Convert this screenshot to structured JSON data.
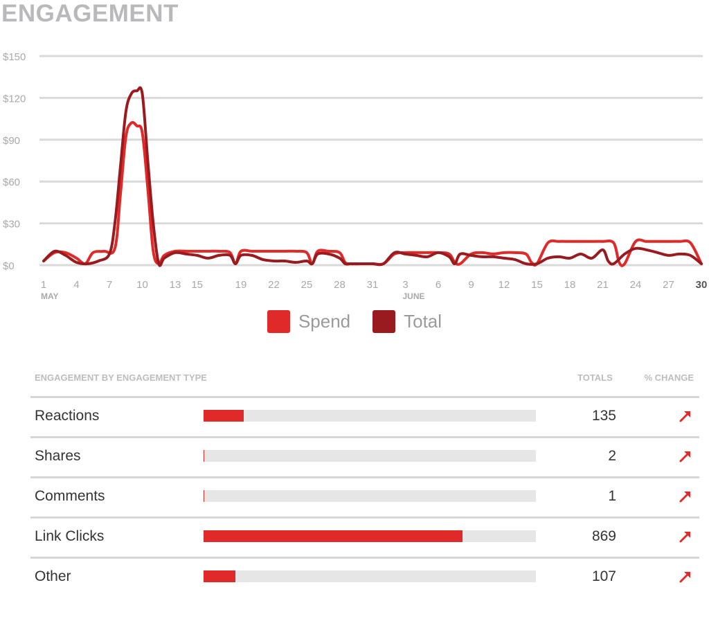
{
  "title": "ENGAGEMENT",
  "colors": {
    "spend": "#e02a2a",
    "total": "#9a1b1f",
    "grid": "#d9d9d9",
    "bar_bg": "#e6e6e6"
  },
  "chart_data": {
    "type": "line",
    "ylim": [
      0,
      150
    ],
    "yticks": [
      "$0",
      "$30",
      "$60",
      "$90",
      "$120",
      "$150"
    ],
    "xticks": [
      {
        "day": 1,
        "label": "1",
        "sub": "MAY",
        "bold": false
      },
      {
        "day": 4,
        "label": "4",
        "sub": "",
        "bold": false
      },
      {
        "day": 7,
        "label": "7",
        "sub": "",
        "bold": false
      },
      {
        "day": 10,
        "label": "10",
        "sub": "",
        "bold": false
      },
      {
        "day": 13,
        "label": "13",
        "sub": "",
        "bold": false
      },
      {
        "day": 15,
        "label": "15",
        "sub": "",
        "bold": false
      },
      {
        "day": 19,
        "label": "19",
        "sub": "",
        "bold": false
      },
      {
        "day": 22,
        "label": "22",
        "sub": "",
        "bold": false
      },
      {
        "day": 25,
        "label": "25",
        "sub": "",
        "bold": false
      },
      {
        "day": 28,
        "label": "28",
        "sub": "",
        "bold": false
      },
      {
        "day": 31,
        "label": "31",
        "sub": "",
        "bold": false
      },
      {
        "day": 34,
        "label": "3",
        "sub": "JUNE",
        "bold": false
      },
      {
        "day": 37,
        "label": "6",
        "sub": "",
        "bold": false
      },
      {
        "day": 40,
        "label": "9",
        "sub": "",
        "bold": false
      },
      {
        "day": 43,
        "label": "12",
        "sub": "",
        "bold": false
      },
      {
        "day": 46,
        "label": "15",
        "sub": "",
        "bold": false
      },
      {
        "day": 49,
        "label": "18",
        "sub": "",
        "bold": false
      },
      {
        "day": 52,
        "label": "21",
        "sub": "",
        "bold": false
      },
      {
        "day": 55,
        "label": "24",
        "sub": "",
        "bold": false
      },
      {
        "day": 58,
        "label": "27",
        "sub": "",
        "bold": false
      },
      {
        "day": 61,
        "label": "30",
        "sub": "",
        "bold": true
      }
    ],
    "series": [
      {
        "name": "Spend",
        "color": "#e02a2a",
        "points": [
          [
            1,
            3
          ],
          [
            2,
            9
          ],
          [
            3,
            9
          ],
          [
            4,
            5
          ],
          [
            4.8,
            1
          ],
          [
            5.5,
            9
          ],
          [
            6.5,
            10
          ],
          [
            7.5,
            12
          ],
          [
            8,
            50
          ],
          [
            8.5,
            92
          ],
          [
            9,
            102
          ],
          [
            9.5,
            100
          ],
          [
            10,
            95
          ],
          [
            10.5,
            55
          ],
          [
            11,
            10
          ],
          [
            11.5,
            1
          ],
          [
            12,
            7
          ],
          [
            13,
            10
          ],
          [
            14,
            10
          ],
          [
            15,
            10
          ],
          [
            16,
            10
          ],
          [
            17,
            10
          ],
          [
            18,
            9
          ],
          [
            18.5,
            1
          ],
          [
            19,
            10
          ],
          [
            20,
            10
          ],
          [
            21,
            10
          ],
          [
            22,
            10
          ],
          [
            23,
            10
          ],
          [
            24,
            10
          ],
          [
            25,
            9
          ],
          [
            25.5,
            1
          ],
          [
            26,
            10
          ],
          [
            27,
            10
          ],
          [
            28,
            9
          ],
          [
            28.5,
            2
          ],
          [
            29,
            1
          ],
          [
            30,
            1
          ],
          [
            31,
            1
          ],
          [
            32,
            1
          ],
          [
            33,
            8
          ],
          [
            34,
            9
          ],
          [
            35,
            9
          ],
          [
            36,
            9
          ],
          [
            37,
            9
          ],
          [
            38,
            8
          ],
          [
            38.5,
            2
          ],
          [
            39,
            1
          ],
          [
            40,
            8
          ],
          [
            41,
            9
          ],
          [
            42,
            8
          ],
          [
            43,
            9
          ],
          [
            44,
            9
          ],
          [
            45,
            8
          ],
          [
            45.5,
            2
          ],
          [
            46,
            1
          ],
          [
            47,
            16
          ],
          [
            48,
            17
          ],
          [
            49,
            17
          ],
          [
            50,
            17
          ],
          [
            51,
            17
          ],
          [
            52,
            17
          ],
          [
            53,
            16
          ],
          [
            53.5,
            2
          ],
          [
            54,
            1
          ],
          [
            55,
            17
          ],
          [
            56,
            17
          ],
          [
            57,
            17
          ],
          [
            58,
            17
          ],
          [
            59,
            17
          ],
          [
            60,
            16
          ],
          [
            61,
            1
          ]
        ]
      },
      {
        "name": "Total",
        "color": "#9a1b1f",
        "points": [
          [
            1,
            3
          ],
          [
            2,
            10
          ],
          [
            3,
            7
          ],
          [
            4,
            2
          ],
          [
            5,
            1
          ],
          [
            6,
            3
          ],
          [
            7,
            8
          ],
          [
            7.5,
            30
          ],
          [
            8,
            70
          ],
          [
            8.5,
            110
          ],
          [
            9,
            123
          ],
          [
            9.5,
            125
          ],
          [
            10,
            123
          ],
          [
            10.5,
            75
          ],
          [
            11,
            30
          ],
          [
            11.5,
            1
          ],
          [
            12,
            5
          ],
          [
            13,
            9
          ],
          [
            14,
            8
          ],
          [
            15,
            7
          ],
          [
            16,
            5
          ],
          [
            17,
            7
          ],
          [
            18,
            7
          ],
          [
            18.5,
            1
          ],
          [
            19,
            7
          ],
          [
            20,
            7
          ],
          [
            21,
            4
          ],
          [
            22,
            3
          ],
          [
            23,
            3
          ],
          [
            24,
            2
          ],
          [
            25,
            3
          ],
          [
            25.5,
            1
          ],
          [
            26,
            8
          ],
          [
            27,
            8
          ],
          [
            28,
            5
          ],
          [
            28.5,
            1
          ],
          [
            29,
            1
          ],
          [
            30,
            1
          ],
          [
            31,
            1
          ],
          [
            32,
            1
          ],
          [
            33,
            9
          ],
          [
            34,
            8
          ],
          [
            35,
            7
          ],
          [
            36,
            6
          ],
          [
            37,
            9
          ],
          [
            38,
            6
          ],
          [
            38.5,
            1
          ],
          [
            39,
            8
          ],
          [
            40,
            7
          ],
          [
            41,
            6
          ],
          [
            42,
            6
          ],
          [
            43,
            5
          ],
          [
            44,
            4
          ],
          [
            45,
            1
          ],
          [
            46,
            1
          ],
          [
            47,
            5
          ],
          [
            48,
            6
          ],
          [
            49,
            5
          ],
          [
            50,
            8
          ],
          [
            51,
            5
          ],
          [
            52,
            11
          ],
          [
            52.5,
            3
          ],
          [
            53,
            1
          ],
          [
            54,
            8
          ],
          [
            55,
            12
          ],
          [
            56,
            11
          ],
          [
            57,
            9
          ],
          [
            58,
            7
          ],
          [
            59,
            8
          ],
          [
            60,
            7
          ],
          [
            61,
            1
          ]
        ]
      }
    ]
  },
  "legend": [
    {
      "label": "Spend",
      "color": "#e02a2a"
    },
    {
      "label": "Total",
      "color": "#9a1b1f"
    }
  ],
  "table": {
    "header": {
      "type": "ENGAGEMENT BY ENGAGEMENT TYPE",
      "totals": "TOTALS",
      "change": "% CHANGE"
    },
    "max_total": 1115,
    "rows": [
      {
        "label": "Reactions",
        "total": "135",
        "value": 135,
        "arrow_icon": "trend-up-arrow-icon"
      },
      {
        "label": "Shares",
        "total": "2",
        "value": 2,
        "arrow_icon": "trend-up-arrow-icon"
      },
      {
        "label": "Comments",
        "total": "1",
        "value": 1,
        "arrow_icon": "trend-up-arrow-icon"
      },
      {
        "label": "Link Clicks",
        "total": "869",
        "value": 869,
        "arrow_icon": "trend-up-arrow-icon"
      },
      {
        "label": "Other",
        "total": "107",
        "value": 107,
        "arrow_icon": "trend-up-arrow-icon"
      }
    ]
  }
}
